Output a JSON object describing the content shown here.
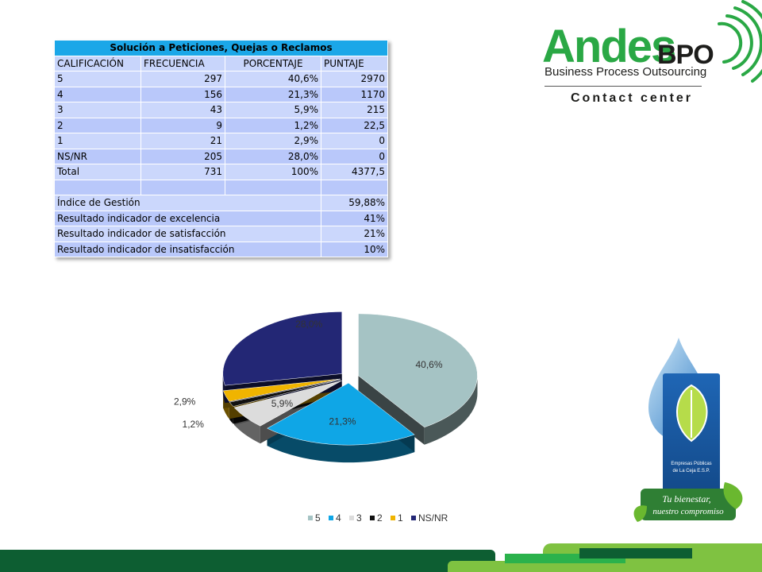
{
  "table": {
    "title": "Solución a Peticiones, Quejas o Reclamos",
    "headers": [
      "CALIFICACIÓN",
      "FRECUENCIA",
      "PORCENTAJE",
      "PUNTAJE"
    ],
    "rows": [
      [
        "5",
        "297",
        "40,6%",
        "2970"
      ],
      [
        "4",
        "156",
        "21,3%",
        "1170"
      ],
      [
        "3",
        "43",
        "5,9%",
        "215"
      ],
      [
        "2",
        "9",
        "1,2%",
        "22,5"
      ],
      [
        "1",
        "21",
        "2,9%",
        "0"
      ],
      [
        "NS/NR",
        "205",
        "28,0%",
        "0"
      ],
      [
        "Total",
        "731",
        "100%",
        "4377,5"
      ]
    ],
    "indicators": [
      [
        "Índice de Gestión",
        "59,88%"
      ],
      [
        "Resultado indicador de excelencia",
        "41%"
      ],
      [
        "Resultado indicador de satisfacción",
        "21%"
      ],
      [
        "Resultado indicador de insatisfacción",
        "10%"
      ]
    ]
  },
  "logo": {
    "name": "Andes",
    "suffix": "BPO",
    "tagline": "Business Process Outsourcing",
    "subline": "Contact center"
  },
  "side_logo": {
    "org": "Empresas Públicas de La Ceja E.S.P.",
    "slogan_line1": "Tu bienestar,",
    "slogan_line2": "nuestro compromiso",
    "colors": {
      "green": "#6ab82f",
      "blue": "#1f66b5"
    }
  },
  "chart_data": {
    "type": "pie",
    "categories": [
      "5",
      "4",
      "3",
      "2",
      "1",
      "NS/NR"
    ],
    "values": [
      40.6,
      21.3,
      5.9,
      1.2,
      2.9,
      28.0
    ],
    "labels": [
      "40,6%",
      "21,3%",
      "5,9%",
      "1,2%",
      "2,9%",
      "28,0%"
    ],
    "colors": [
      "#a5c3c4",
      "#0fa6e6",
      "#dcdcdc",
      "#111111",
      "#f0b400",
      "#232775"
    ],
    "legend_position": "bottom",
    "exploded": true,
    "three_d": true
  },
  "colors": {
    "table_header": "#1ba7e8",
    "table_cell": "#cbd7fc",
    "brand_green": "#2aa845",
    "bar_dark_green": "#0d5e32",
    "bar_light_green": "#7fc241"
  }
}
